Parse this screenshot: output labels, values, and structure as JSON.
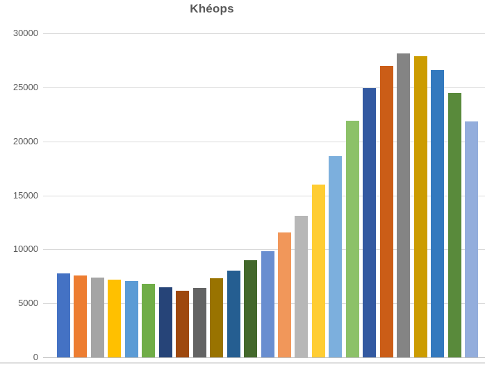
{
  "window": {
    "background": "#FFFFFF"
  },
  "chart_data": {
    "type": "bar",
    "title": "Khéops",
    "values": [
      7800,
      7600,
      7400,
      7200,
      7050,
      6800,
      6500,
      6150,
      6400,
      7300,
      8000,
      9000,
      9850,
      11550,
      13100,
      16000,
      18650,
      21900,
      24900,
      26950,
      28150,
      27900,
      26600,
      24500,
      21850
    ],
    "point_colors": [
      "#4472C4",
      "#ED7D31",
      "#A5A5A5",
      "#FFC000",
      "#5B9BD5",
      "#70AD47",
      "#264478",
      "#9E480E",
      "#636363",
      "#997300",
      "#255E91",
      "#43682B",
      "#698ED0",
      "#F1975A",
      "#B7B7B7",
      "#FFCD33",
      "#7CAFDD",
      "#8CC168",
      "#3359A1",
      "#CB5D17",
      "#848484",
      "#CC9C00",
      "#3379BE",
      "#598A3B",
      "#93ADDC"
    ],
    "xlabel": "",
    "ylabel": "",
    "ylim": [
      0,
      30000
    ],
    "yticks": [
      0,
      5000,
      10000,
      15000,
      20000,
      25000,
      30000
    ],
    "grid": "horizontal",
    "legend": "none",
    "category_labels_visible": false,
    "title_color": "#595959",
    "axis_label_color": "#595959",
    "gridline_color": "#D9D9D9",
    "axis_line_color": "#BFBFBF"
  }
}
